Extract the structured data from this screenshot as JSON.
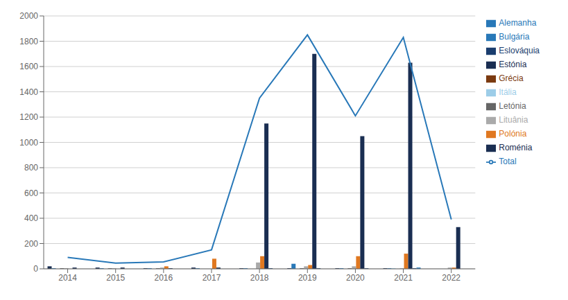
{
  "chart_data": {
    "type": "bar",
    "categories": [
      "2014",
      "2015",
      "2016",
      "2017",
      "2018",
      "2019",
      "2020",
      "2021",
      "2022"
    ],
    "series": [
      {
        "name": "Estónia",
        "color": "#1a2e52",
        "values": [
          20,
          10,
          5,
          10,
          5,
          5,
          5,
          5,
          0
        ]
      },
      {
        "name": "Bulgária",
        "color": "#2878b8",
        "values": [
          5,
          5,
          5,
          5,
          5,
          40,
          5,
          5,
          0
        ]
      },
      {
        "name": "Itália",
        "color": "#9dcde8",
        "values": [
          0,
          0,
          0,
          0,
          0,
          0,
          0,
          5,
          0
        ]
      },
      {
        "name": "Letónia",
        "color": "#666666",
        "values": [
          5,
          5,
          5,
          0,
          0,
          5,
          5,
          0,
          0
        ]
      },
      {
        "name": "Lituânia",
        "color": "#aaaaaa",
        "values": [
          5,
          5,
          10,
          0,
          50,
          20,
          20,
          5,
          10
        ]
      },
      {
        "name": "Polónia",
        "color": "#e07820",
        "values": [
          0,
          0,
          20,
          80,
          100,
          30,
          100,
          120,
          10
        ]
      },
      {
        "name": "Roménia",
        "color": "#1a2e52",
        "values": [
          10,
          10,
          5,
          10,
          1150,
          1700,
          1050,
          1630,
          330
        ]
      },
      {
        "name": "Eslováquia",
        "color": "#1a3d6e",
        "values": [
          0,
          0,
          0,
          0,
          5,
          5,
          5,
          5,
          0
        ]
      },
      {
        "name": "Alemanha",
        "color": "#2878b8",
        "values": [
          0,
          0,
          0,
          0,
          0,
          0,
          0,
          10,
          0
        ]
      },
      {
        "name": "Grécia",
        "color": "#7b3a10",
        "values": [
          0,
          0,
          0,
          0,
          0,
          0,
          0,
          0,
          0
        ]
      },
      {
        "name": "Total",
        "type": "line",
        "color": "#2878b8",
        "values": [
          90,
          45,
          55,
          150,
          1350,
          1850,
          1210,
          1830,
          390
        ]
      }
    ],
    "ylim": [
      0,
      2000
    ],
    "yticks": [
      0,
      200,
      400,
      600,
      800,
      1000,
      1200,
      1400,
      1600,
      1800,
      2000
    ],
    "grid": true,
    "legend": "right"
  }
}
